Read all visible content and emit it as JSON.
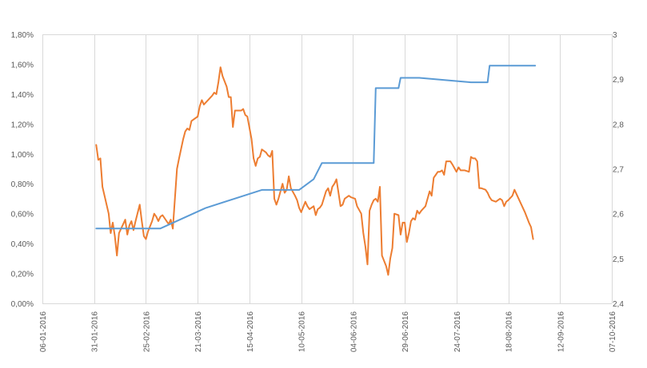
{
  "chart_data": {
    "type": "line",
    "title": "",
    "grid": "vertical",
    "x_ticks": [
      "06-01-2016",
      "31-01-2016",
      "25-02-2016",
      "21-03-2016",
      "15-04-2016",
      "10-05-2016",
      "04-06-2016",
      "29-06-2016",
      "24-07-2016",
      "18-08-2016",
      "12-09-2016",
      "07-10-2016"
    ],
    "xlim": [
      "2016-01-06",
      "2016-10-07"
    ],
    "y_left": {
      "ticks": [
        "0,00%",
        "0,20%",
        "0,40%",
        "0,60%",
        "0,80%",
        "1,00%",
        "1,20%",
        "1,40%",
        "1,60%",
        "1,80%"
      ],
      "ylim": [
        0,
        1.8
      ]
    },
    "y_right": {
      "ticks": [
        "2,4",
        "2,5",
        "2,6",
        "2,7",
        "2,8",
        "2,9",
        "3"
      ],
      "ylim": [
        2.4,
        3.0
      ]
    },
    "colors": {
      "orange": "#ED7D31",
      "blue": "#5B9BD5",
      "grid": "#D9D9D9",
      "text": "#595959"
    },
    "series": [
      {
        "axis": "left",
        "color": "#ED7D31",
        "points": [
          [
            "2016-02-01",
            1.06
          ],
          [
            "2016-02-02",
            0.96
          ],
          [
            "2016-02-03",
            0.97
          ],
          [
            "2016-02-04",
            0.78
          ],
          [
            "2016-02-05",
            0.72
          ],
          [
            "2016-02-07",
            0.6
          ],
          [
            "2016-02-08",
            0.47
          ],
          [
            "2016-02-09",
            0.54
          ],
          [
            "2016-02-10",
            0.45
          ],
          [
            "2016-02-11",
            0.32
          ],
          [
            "2016-02-12",
            0.47
          ],
          [
            "2016-02-14",
            0.53
          ],
          [
            "2016-02-15",
            0.56
          ],
          [
            "2016-02-16",
            0.46
          ],
          [
            "2016-02-17",
            0.52
          ],
          [
            "2016-02-18",
            0.55
          ],
          [
            "2016-02-19",
            0.49
          ],
          [
            "2016-02-20",
            0.55
          ],
          [
            "2016-02-22",
            0.66
          ],
          [
            "2016-02-23",
            0.55
          ],
          [
            "2016-02-24",
            0.45
          ],
          [
            "2016-02-25",
            0.43
          ],
          [
            "2016-02-26",
            0.48
          ],
          [
            "2016-02-28",
            0.55
          ],
          [
            "2016-02-29",
            0.6
          ],
          [
            "2016-03-01",
            0.58
          ],
          [
            "2016-03-02",
            0.55
          ],
          [
            "2016-03-03",
            0.58
          ],
          [
            "2016-03-04",
            0.59
          ],
          [
            "2016-03-06",
            0.55
          ],
          [
            "2016-03-07",
            0.53
          ],
          [
            "2016-03-08",
            0.56
          ],
          [
            "2016-03-09",
            0.5
          ],
          [
            "2016-03-10",
            0.7
          ],
          [
            "2016-03-11",
            0.9
          ],
          [
            "2016-03-12",
            0.97
          ],
          [
            "2016-03-14",
            1.1
          ],
          [
            "2016-03-15",
            1.15
          ],
          [
            "2016-03-16",
            1.17
          ],
          [
            "2016-03-17",
            1.16
          ],
          [
            "2016-03-18",
            1.22
          ],
          [
            "2016-03-19",
            1.23
          ],
          [
            "2016-03-21",
            1.25
          ],
          [
            "2016-03-22",
            1.32
          ],
          [
            "2016-03-23",
            1.36
          ],
          [
            "2016-03-24",
            1.33
          ],
          [
            "2016-03-26",
            1.36
          ],
          [
            "2016-03-28",
            1.39
          ],
          [
            "2016-03-29",
            1.41
          ],
          [
            "2016-03-30",
            1.4
          ],
          [
            "2016-03-31",
            1.48
          ],
          [
            "2016-04-01",
            1.58
          ],
          [
            "2016-04-02",
            1.52
          ],
          [
            "2016-04-04",
            1.45
          ],
          [
            "2016-04-05",
            1.38
          ],
          [
            "2016-04-06",
            1.38
          ],
          [
            "2016-04-07",
            1.18
          ],
          [
            "2016-04-08",
            1.29
          ],
          [
            "2016-04-11",
            1.29
          ],
          [
            "2016-04-12",
            1.3
          ],
          [
            "2016-04-13",
            1.26
          ],
          [
            "2016-04-14",
            1.25
          ],
          [
            "2016-04-16",
            1.1
          ],
          [
            "2016-04-17",
            0.97
          ],
          [
            "2016-04-18",
            0.92
          ],
          [
            "2016-04-19",
            0.97
          ],
          [
            "2016-04-20",
            0.98
          ],
          [
            "2016-04-21",
            1.03
          ],
          [
            "2016-04-23",
            1.01
          ],
          [
            "2016-04-24",
            0.99
          ],
          [
            "2016-04-25",
            0.98
          ],
          [
            "2016-04-26",
            1.02
          ],
          [
            "2016-04-27",
            0.7
          ],
          [
            "2016-04-28",
            0.66
          ],
          [
            "2016-04-29",
            0.7
          ],
          [
            "2016-05-01",
            0.8
          ],
          [
            "2016-05-02",
            0.74
          ],
          [
            "2016-05-03",
            0.76
          ],
          [
            "2016-05-04",
            0.85
          ],
          [
            "2016-05-05",
            0.77
          ],
          [
            "2016-05-07",
            0.72
          ],
          [
            "2016-05-08",
            0.69
          ],
          [
            "2016-05-09",
            0.64
          ],
          [
            "2016-05-10",
            0.61
          ],
          [
            "2016-05-12",
            0.68
          ],
          [
            "2016-05-13",
            0.65
          ],
          [
            "2016-05-14",
            0.63
          ],
          [
            "2016-05-16",
            0.65
          ],
          [
            "2016-05-17",
            0.59
          ],
          [
            "2016-05-18",
            0.63
          ],
          [
            "2016-05-19",
            0.64
          ],
          [
            "2016-05-20",
            0.66
          ],
          [
            "2016-05-22",
            0.75
          ],
          [
            "2016-05-23",
            0.77
          ],
          [
            "2016-05-24",
            0.72
          ],
          [
            "2016-05-25",
            0.78
          ],
          [
            "2016-05-26",
            0.8
          ],
          [
            "2016-05-27",
            0.83
          ],
          [
            "2016-05-29",
            0.65
          ],
          [
            "2016-05-30",
            0.66
          ],
          [
            "2016-05-31",
            0.7
          ],
          [
            "2016-06-02",
            0.72
          ],
          [
            "2016-06-03",
            0.71
          ],
          [
            "2016-06-05",
            0.7
          ],
          [
            "2016-06-06",
            0.65
          ],
          [
            "2016-06-08",
            0.6
          ],
          [
            "2016-06-09",
            0.47
          ],
          [
            "2016-06-10",
            0.38
          ],
          [
            "2016-06-11",
            0.26
          ],
          [
            "2016-06-12",
            0.62
          ],
          [
            "2016-06-13",
            0.66
          ],
          [
            "2016-06-14",
            0.69
          ],
          [
            "2016-06-15",
            0.7
          ],
          [
            "2016-06-16",
            0.68
          ],
          [
            "2016-06-17",
            0.78
          ],
          [
            "2016-06-18",
            0.32
          ],
          [
            "2016-06-20",
            0.25
          ],
          [
            "2016-06-21",
            0.19
          ],
          [
            "2016-06-22",
            0.3
          ],
          [
            "2016-06-23",
            0.37
          ],
          [
            "2016-06-24",
            0.6
          ],
          [
            "2016-06-26",
            0.59
          ],
          [
            "2016-06-27",
            0.46
          ],
          [
            "2016-06-28",
            0.54
          ],
          [
            "2016-06-29",
            0.54
          ],
          [
            "2016-06-30",
            0.41
          ],
          [
            "2016-07-01",
            0.47
          ],
          [
            "2016-07-02",
            0.55
          ],
          [
            "2016-07-03",
            0.57
          ],
          [
            "2016-07-04",
            0.56
          ],
          [
            "2016-07-05",
            0.62
          ],
          [
            "2016-07-06",
            0.6
          ],
          [
            "2016-07-07",
            0.62
          ],
          [
            "2016-07-09",
            0.65
          ],
          [
            "2016-07-11",
            0.75
          ],
          [
            "2016-07-12",
            0.72
          ],
          [
            "2016-07-13",
            0.84
          ],
          [
            "2016-07-14",
            0.86
          ],
          [
            "2016-07-15",
            0.88
          ],
          [
            "2016-07-16",
            0.88
          ],
          [
            "2016-07-17",
            0.89
          ],
          [
            "2016-07-18",
            0.86
          ],
          [
            "2016-07-19",
            0.95
          ],
          [
            "2016-07-21",
            0.95
          ],
          [
            "2016-07-22",
            0.93
          ],
          [
            "2016-07-24",
            0.88
          ],
          [
            "2016-07-25",
            0.91
          ],
          [
            "2016-07-26",
            0.89
          ],
          [
            "2016-07-28",
            0.89
          ],
          [
            "2016-07-30",
            0.88
          ],
          [
            "2016-07-31",
            0.98
          ],
          [
            "2016-08-01",
            0.97
          ],
          [
            "2016-08-02",
            0.97
          ],
          [
            "2016-08-03",
            0.95
          ],
          [
            "2016-08-04",
            0.77
          ],
          [
            "2016-08-05",
            0.77
          ],
          [
            "2016-08-07",
            0.76
          ],
          [
            "2016-08-08",
            0.74
          ],
          [
            "2016-08-09",
            0.71
          ],
          [
            "2016-08-10",
            0.69
          ],
          [
            "2016-08-12",
            0.68
          ],
          [
            "2016-08-14",
            0.7
          ],
          [
            "2016-08-15",
            0.69
          ],
          [
            "2016-08-16",
            0.65
          ],
          [
            "2016-08-17",
            0.68
          ],
          [
            "2016-08-18",
            0.69
          ],
          [
            "2016-08-20",
            0.72
          ],
          [
            "2016-08-21",
            0.76
          ],
          [
            "2016-08-23",
            0.7
          ],
          [
            "2016-08-24",
            0.67
          ],
          [
            "2016-08-26",
            0.61
          ],
          [
            "2016-08-28",
            0.54
          ],
          [
            "2016-08-29",
            0.51
          ],
          [
            "2016-08-30",
            0.43
          ]
        ]
      },
      {
        "axis": "right",
        "color": "#5B9BD5",
        "points": [
          [
            "2016-02-01",
            2.567
          ],
          [
            "2016-03-03",
            2.567
          ],
          [
            "2016-03-25",
            2.613
          ],
          [
            "2016-04-21",
            2.653
          ],
          [
            "2016-05-09",
            2.653
          ],
          [
            "2016-05-16",
            2.677
          ],
          [
            "2016-05-20",
            2.713
          ],
          [
            "2016-06-14",
            2.713
          ],
          [
            "2016-06-15",
            2.88
          ],
          [
            "2016-06-26",
            2.88
          ],
          [
            "2016-06-27",
            2.903
          ],
          [
            "2016-07-06",
            2.903
          ],
          [
            "2016-07-31",
            2.893
          ],
          [
            "2016-08-08",
            2.893
          ],
          [
            "2016-08-09",
            2.93
          ],
          [
            "2016-08-31",
            2.93
          ]
        ]
      }
    ]
  }
}
